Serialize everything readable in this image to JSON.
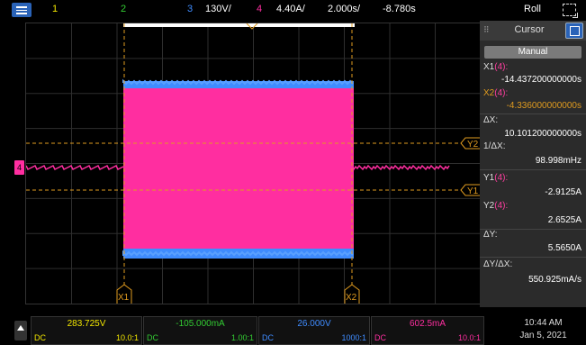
{
  "colors": {
    "ch1": "#f2e600",
    "ch2": "#33cc33",
    "ch3": "#3f8cff",
    "ch4": "#ff2ea0",
    "cursor": "#e09b1f",
    "accent": "#2a63b8"
  },
  "toolbar": {
    "ch1_label": "1",
    "ch2_label": "2",
    "ch3_label": "3",
    "ch3_scale": "130V/",
    "ch4_label": "4",
    "ch4_scale": "4.40A/",
    "timebase": "2.000s/",
    "delay": "-8.780s",
    "mode": "Roll",
    "menu_icon": "menu-icon",
    "zoom_icon": "zoom-icon"
  },
  "plot": {
    "ch4_marker": "4",
    "cursor_y2_label": "Y2",
    "cursor_y1_label": "Y1",
    "cursor_x1_label": "X1",
    "cursor_x2_label": "X2"
  },
  "cursor_panel": {
    "title": "Cursor",
    "mode": "Manual",
    "x1_label": "X1",
    "x1_channel": "(4):",
    "x1_value": "-14.437200000000s",
    "x2_label": "X2",
    "x2_channel": "(4):",
    "x2_value": "-4.336000000000s",
    "dx_label": "ΔX:",
    "dx_value": "10.101200000000s",
    "inv_dx_label": "1/ΔX:",
    "inv_dx_value": "98.998mHz",
    "y1_label": "Y1",
    "y1_channel": "(4):",
    "y1_value": "-2.9125A",
    "y2_label": "Y2",
    "y2_channel": "(4):",
    "y2_value": "2.6525A",
    "dy_label": "ΔY:",
    "dy_value": "5.5650A",
    "dydx_label": "ΔY/ΔX:",
    "dydx_value": "550.925mA/s"
  },
  "channels": [
    {
      "value": "283.725V",
      "coupling": "DC",
      "probe": "10.0:1"
    },
    {
      "value": "-105.000mA",
      "coupling": "DC",
      "probe": "1.00:1"
    },
    {
      "value": "26.000V",
      "coupling": "DC",
      "probe": "1000:1"
    },
    {
      "value": "602.5mA",
      "coupling": "DC",
      "probe": "10.0:1"
    }
  ],
  "status": {
    "time": "10:44 AM",
    "date": "Jan 5, 2021"
  }
}
